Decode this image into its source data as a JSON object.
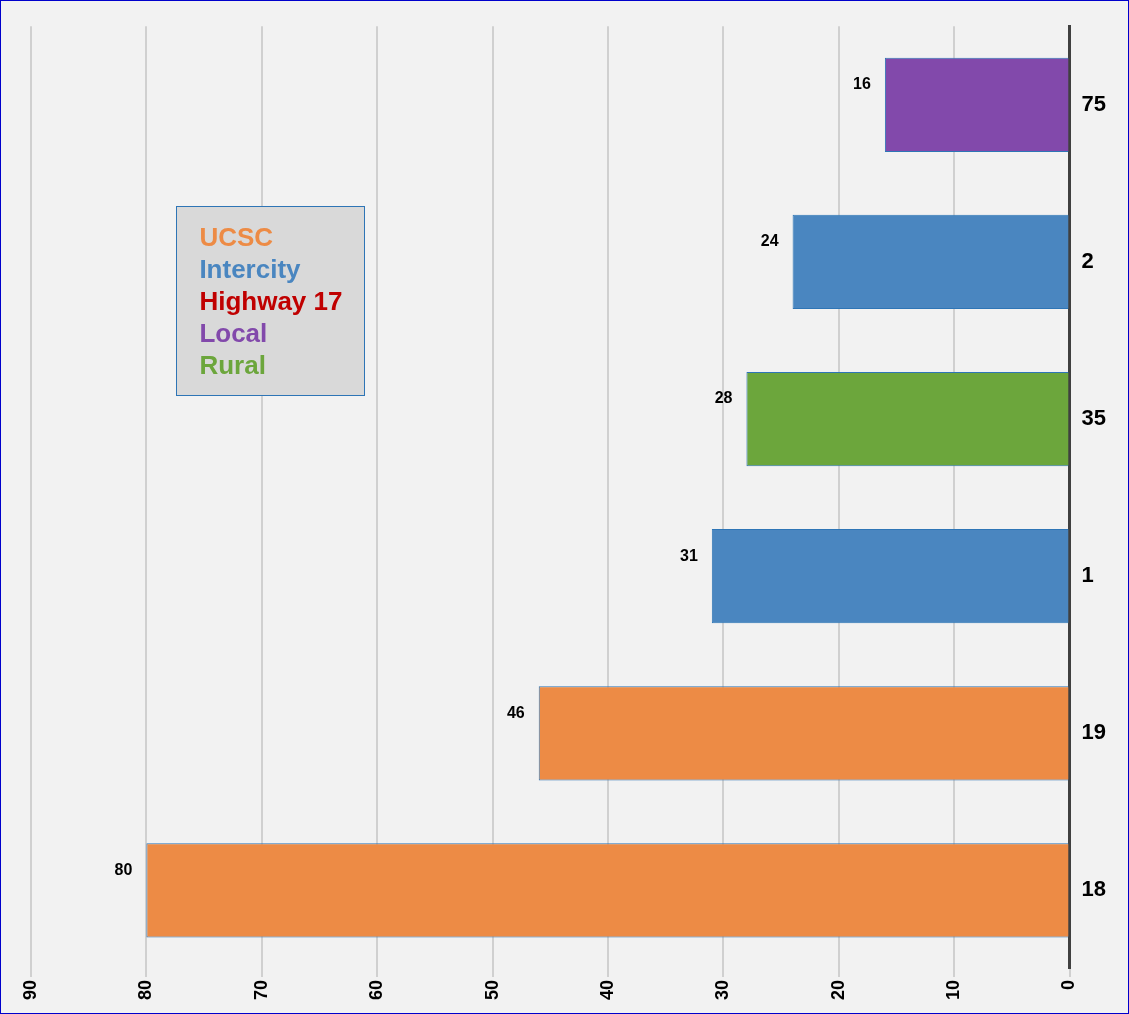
{
  "chart_data": {
    "type": "bar",
    "orientation": "horizontal",
    "categories": [
      "75",
      "2",
      "35",
      "1",
      "19",
      "18"
    ],
    "series": [
      {
        "name": "UCSC",
        "color": "#ed8b45",
        "values": [
          null,
          null,
          null,
          null,
          46,
          80
        ]
      },
      {
        "name": "Intercity",
        "color": "#4a86c0",
        "values": [
          null,
          24,
          null,
          31,
          null,
          null
        ]
      },
      {
        "name": "Highway 17",
        "color": "#c00000",
        "values": [
          null,
          null,
          null,
          null,
          null,
          null
        ]
      },
      {
        "name": "Local",
        "color": "#8249ab",
        "values": [
          16,
          null,
          null,
          null,
          null,
          null
        ]
      },
      {
        "name": "Rural",
        "color": "#6ca63c",
        "values": [
          null,
          null,
          28,
          null,
          null,
          null
        ]
      }
    ],
    "xlim": [
      90,
      0
    ],
    "xticks": [
      0,
      10,
      20,
      30,
      40,
      50,
      60,
      70,
      80,
      90
    ],
    "grid": "x",
    "legend": "top left",
    "data_labels": true
  }
}
